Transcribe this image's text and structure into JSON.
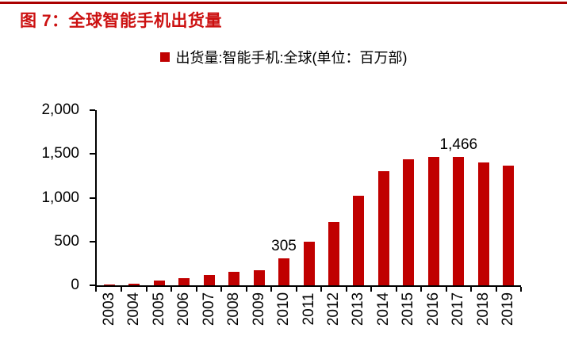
{
  "page": {
    "background": "#ffffff",
    "top_rule_color": "#aa0000"
  },
  "header": {
    "title": "图 7：全球智能手机出货量",
    "title_color": "#cc1111"
  },
  "chart_data": {
    "type": "bar",
    "title": "全球智能手机出货量",
    "legend": [
      "出货量:智能手机:全球(单位：百万部)"
    ],
    "legend_position": "top-center",
    "legend_marker_color": "#c00000",
    "bar_color": "#c00000",
    "axis_color": "#000000",
    "grid": false,
    "categories": [
      "2003",
      "2004",
      "2005",
      "2006",
      "2007",
      "2008",
      "2009",
      "2010",
      "2011",
      "2012",
      "2013",
      "2014",
      "2015",
      "2016",
      "2017",
      "2018",
      "2019"
    ],
    "values": [
      10,
      18,
      56,
      81,
      122,
      151,
      174,
      305,
      495,
      722,
      1019,
      1302,
      1437,
      1471,
      1466,
      1405,
      1371
    ],
    "xlabel": "",
    "ylabel": "",
    "ylim": [
      0,
      2000
    ],
    "yticks": [
      0,
      500,
      1000,
      1500,
      2000
    ],
    "ytick_labels": [
      "0",
      "500",
      "1,000",
      "1,500",
      "2,000"
    ],
    "xtick_label_rotation_deg": -90,
    "annotations": [
      {
        "category": "2010",
        "text": "305"
      },
      {
        "category": "2017",
        "text": "1,466"
      }
    ]
  }
}
